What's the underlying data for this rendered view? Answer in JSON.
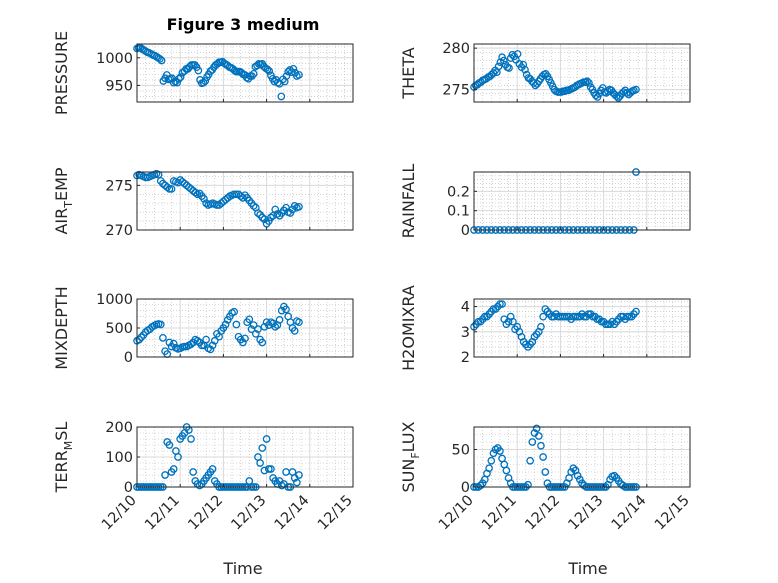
{
  "figure": {
    "title": "Figure 3 medium",
    "xlabel": "Time",
    "xticklabels": [
      "12/10",
      "12/11",
      "12/12",
      "12/13",
      "12/14",
      "12/15"
    ]
  },
  "chart_data": [
    {
      "type": "scatter",
      "ylabel": "PRESSURE",
      "xlim": [
        0,
        5
      ],
      "ylim": [
        920,
        1025
      ],
      "yticks": [
        950,
        1000
      ],
      "yticklabels": [
        "950",
        "1000"
      ],
      "x": [
        0.0,
        0.04,
        0.08,
        0.12,
        0.16,
        0.2,
        0.24,
        0.28,
        0.33,
        0.37,
        0.41,
        0.45,
        0.49,
        0.53,
        0.57,
        0.61,
        0.65,
        0.69,
        0.73,
        0.77,
        0.81,
        0.85,
        0.89,
        0.93,
        0.97,
        1.01,
        1.05,
        1.1,
        1.14,
        1.18,
        1.22,
        1.26,
        1.3,
        1.34,
        1.38,
        1.42,
        1.46,
        1.5,
        1.54,
        1.58,
        1.62,
        1.66,
        1.7,
        1.74,
        1.78,
        1.82,
        1.86,
        1.9,
        1.94,
        1.98,
        2.02,
        2.06,
        2.1,
        2.14,
        2.18,
        2.22,
        2.26,
        2.3,
        2.34,
        2.38,
        2.42,
        2.46,
        2.5,
        2.54,
        2.58,
        2.62,
        2.66,
        2.7,
        2.74,
        2.78,
        2.82,
        2.86,
        2.9,
        2.94,
        2.98,
        3.02,
        3.06,
        3.1,
        3.14,
        3.18,
        3.22,
        3.26,
        3.3,
        3.34,
        3.38,
        3.42,
        3.46,
        3.5,
        3.54,
        3.58,
        3.62,
        3.66,
        3.7,
        3.75
      ],
      "values": [
        1017,
        1018,
        1018,
        1016,
        1014,
        1012,
        1010,
        1009,
        1007,
        1005,
        1004,
        1002,
        1000,
        998,
        995,
        958,
        963,
        969,
        961,
        962,
        963,
        955,
        957,
        955,
        962,
        965,
        973,
        976,
        980,
        980,
        984,
        987,
        987,
        987,
        983,
        977,
        960,
        954,
        955,
        958,
        965,
        970,
        976,
        978,
        983,
        987,
        989,
        992,
        992,
        993,
        990,
        988,
        986,
        983,
        982,
        980,
        977,
        975,
        975,
        975,
        973,
        970,
        969,
        964,
        962,
        967,
        967,
        971,
        984,
        986,
        989,
        988,
        989,
        984,
        981,
        979,
        976,
        968,
        962,
        957,
        960,
        955,
        953,
        930,
        961,
        957,
        967,
        975,
        978,
        974,
        980,
        973,
        967,
        969
      ]
    },
    {
      "type": "scatter",
      "ylabel": "THETA",
      "xlim": [
        0,
        5
      ],
      "ylim": [
        273.5,
        280.5
      ],
      "yticks": [
        275,
        280
      ],
      "yticklabels": [
        "275",
        "280"
      ],
      "x": [
        0.0,
        0.04,
        0.08,
        0.12,
        0.16,
        0.2,
        0.24,
        0.28,
        0.33,
        0.37,
        0.41,
        0.45,
        0.49,
        0.53,
        0.57,
        0.61,
        0.65,
        0.69,
        0.73,
        0.77,
        0.81,
        0.85,
        0.89,
        0.93,
        0.97,
        1.01,
        1.05,
        1.1,
        1.14,
        1.18,
        1.22,
        1.26,
        1.3,
        1.34,
        1.38,
        1.42,
        1.46,
        1.5,
        1.54,
        1.58,
        1.62,
        1.66,
        1.7,
        1.74,
        1.78,
        1.82,
        1.86,
        1.9,
        1.94,
        1.98,
        2.02,
        2.06,
        2.1,
        2.14,
        2.18,
        2.22,
        2.26,
        2.3,
        2.34,
        2.38,
        2.42,
        2.46,
        2.5,
        2.54,
        2.58,
        2.62,
        2.66,
        2.7,
        2.74,
        2.78,
        2.82,
        2.86,
        2.9,
        2.94,
        2.98,
        3.02,
        3.06,
        3.1,
        3.14,
        3.18,
        3.22,
        3.26,
        3.3,
        3.34,
        3.38,
        3.42,
        3.46,
        3.5,
        3.54,
        3.58,
        3.62,
        3.66,
        3.7,
        3.75
      ],
      "values": [
        275.3,
        275.5,
        275.6,
        275.8,
        275.9,
        276.1,
        276.2,
        276.3,
        276.5,
        276.6,
        276.8,
        277.0,
        277.3,
        277.1,
        277.8,
        278.3,
        278.9,
        278.5,
        278.0,
        277.7,
        277.6,
        278.8,
        279.2,
        279.0,
        278.6,
        279.3,
        278.1,
        277.7,
        278.0,
        277.4,
        276.8,
        276.4,
        276.3,
        276.0,
        275.8,
        275.5,
        275.7,
        276.0,
        276.3,
        276.6,
        276.8,
        276.9,
        276.6,
        276.2,
        275.8,
        275.4,
        275.0,
        274.8,
        274.7,
        274.7,
        274.7,
        274.8,
        274.8,
        274.9,
        274.9,
        275.0,
        275.1,
        275.2,
        275.3,
        275.5,
        275.6,
        275.7,
        275.8,
        275.9,
        275.9,
        276.0,
        275.8,
        275.3,
        275.0,
        274.6,
        274.3,
        274.1,
        274.5,
        274.9,
        275.2,
        274.7,
        274.6,
        274.8,
        275.0,
        274.9,
        274.6,
        274.4,
        274.2,
        274.0,
        274.2,
        274.5,
        274.7,
        274.9,
        274.6,
        274.4,
        274.6,
        274.8,
        274.9,
        275.0
      ]
    },
    {
      "type": "scatter",
      "ylabel": "AIR_TEMP",
      "xlim": [
        0,
        5
      ],
      "ylim": [
        270,
        276.5
      ],
      "yticks": [
        270,
        275
      ],
      "yticklabels": [
        "270",
        "275"
      ],
      "x": [
        0.0,
        0.05,
        0.1,
        0.15,
        0.2,
        0.25,
        0.3,
        0.35,
        0.4,
        0.45,
        0.5,
        0.55,
        0.6,
        0.65,
        0.7,
        0.75,
        0.8,
        0.85,
        0.9,
        0.95,
        1.0,
        1.05,
        1.1,
        1.15,
        1.2,
        1.25,
        1.3,
        1.35,
        1.4,
        1.45,
        1.5,
        1.55,
        1.6,
        1.65,
        1.7,
        1.75,
        1.8,
        1.85,
        1.9,
        1.95,
        2.0,
        2.05,
        2.1,
        2.15,
        2.2,
        2.25,
        2.3,
        2.35,
        2.4,
        2.45,
        2.5,
        2.55,
        2.6,
        2.65,
        2.7,
        2.75,
        2.8,
        2.85,
        2.9,
        2.95,
        3.0,
        3.05,
        3.1,
        3.15,
        3.2,
        3.25,
        3.3,
        3.35,
        3.4,
        3.45,
        3.5,
        3.55,
        3.6,
        3.65,
        3.7,
        3.75
      ],
      "values": [
        276.1,
        276.2,
        276.1,
        276.0,
        275.9,
        275.9,
        276.0,
        276.1,
        276.2,
        276.3,
        276.2,
        275.5,
        275.2,
        275.0,
        274.8,
        274.6,
        274.6,
        275.5,
        275.4,
        275.3,
        275.6,
        275.4,
        275.2,
        275.0,
        274.8,
        274.6,
        274.4,
        274.2,
        274.0,
        274.1,
        273.8,
        273.5,
        273.0,
        272.8,
        272.9,
        273.0,
        272.9,
        272.8,
        272.8,
        273.0,
        273.2,
        273.4,
        273.6,
        273.8,
        273.9,
        274.0,
        274.0,
        274.0,
        273.8,
        273.6,
        273.9,
        273.6,
        273.3,
        273.0,
        272.7,
        272.5,
        271.9,
        271.7,
        271.4,
        271.2,
        270.7,
        271.0,
        271.4,
        271.6,
        272.3,
        271.8,
        271.6,
        271.9,
        272.2,
        272.5,
        272.0,
        271.9,
        272.3,
        272.7,
        272.5,
        272.6
      ]
    },
    {
      "type": "scatter",
      "ylabel": "RAINFALL",
      "xlim": [
        0,
        5
      ],
      "ylim": [
        0,
        0.3
      ],
      "yticks": [
        0,
        0.1,
        0.2
      ],
      "yticklabels": [
        "0",
        "0.1",
        "0.2"
      ],
      "x": [
        0.0,
        0.1,
        0.2,
        0.3,
        0.4,
        0.5,
        0.6,
        0.7,
        0.8,
        0.9,
        1.0,
        1.1,
        1.2,
        1.3,
        1.4,
        1.5,
        1.6,
        1.7,
        1.8,
        1.9,
        2.0,
        2.1,
        2.2,
        2.3,
        2.4,
        2.5,
        2.6,
        2.7,
        2.8,
        2.9,
        3.0,
        3.1,
        3.2,
        3.3,
        3.4,
        3.5,
        3.6,
        3.7,
        3.75
      ],
      "values": [
        0,
        0,
        0,
        0,
        0,
        0,
        0,
        0,
        0,
        0,
        0,
        0,
        0,
        0,
        0,
        0,
        0,
        0,
        0,
        0,
        0,
        0,
        0,
        0,
        0,
        0,
        0,
        0,
        0,
        0,
        0,
        0,
        0,
        0,
        0,
        0,
        0,
        0,
        0.3
      ]
    },
    {
      "type": "scatter",
      "ylabel": "MIXDEPTH",
      "xlim": [
        0,
        5
      ],
      "ylim": [
        0,
        1000
      ],
      "yticks": [
        0,
        500,
        1000
      ],
      "yticklabels": [
        "0",
        "500",
        "1000"
      ],
      "x": [
        0.0,
        0.05,
        0.1,
        0.15,
        0.2,
        0.25,
        0.3,
        0.35,
        0.4,
        0.45,
        0.5,
        0.55,
        0.6,
        0.65,
        0.7,
        0.75,
        0.8,
        0.85,
        0.9,
        0.95,
        1.0,
        1.05,
        1.1,
        1.15,
        1.2,
        1.25,
        1.3,
        1.35,
        1.4,
        1.45,
        1.5,
        1.55,
        1.6,
        1.65,
        1.7,
        1.75,
        1.8,
        1.85,
        1.9,
        1.95,
        2.0,
        2.05,
        2.1,
        2.15,
        2.2,
        2.25,
        2.3,
        2.35,
        2.4,
        2.45,
        2.5,
        2.55,
        2.6,
        2.65,
        2.7,
        2.75,
        2.8,
        2.85,
        2.9,
        2.95,
        3.0,
        3.05,
        3.1,
        3.15,
        3.2,
        3.25,
        3.3,
        3.35,
        3.4,
        3.45,
        3.5,
        3.55,
        3.6,
        3.65,
        3.7,
        3.75
      ],
      "values": [
        280,
        300,
        340,
        380,
        430,
        460,
        480,
        520,
        540,
        560,
        570,
        560,
        330,
        100,
        50,
        250,
        180,
        230,
        160,
        140,
        150,
        170,
        180,
        180,
        200,
        220,
        250,
        300,
        280,
        250,
        200,
        200,
        300,
        150,
        130,
        200,
        280,
        400,
        350,
        450,
        500,
        560,
        640,
        700,
        760,
        780,
        560,
        350,
        300,
        250,
        320,
        600,
        650,
        480,
        550,
        400,
        480,
        300,
        250,
        520,
        600,
        550,
        600,
        580,
        520,
        550,
        640,
        800,
        870,
        820,
        700,
        600,
        500,
        450,
        620,
        600
      ]
    },
    {
      "type": "scatter",
      "ylabel": "H2OMIXRA",
      "xlim": [
        0,
        5
      ],
      "ylim": [
        2,
        4.3
      ],
      "yticks": [
        2,
        3,
        4
      ],
      "yticklabels": [
        "2",
        "3",
        "4"
      ],
      "x": [
        0.0,
        0.05,
        0.1,
        0.15,
        0.2,
        0.25,
        0.3,
        0.35,
        0.4,
        0.45,
        0.5,
        0.55,
        0.6,
        0.65,
        0.7,
        0.75,
        0.8,
        0.85,
        0.9,
        0.95,
        1.0,
        1.05,
        1.1,
        1.15,
        1.2,
        1.25,
        1.3,
        1.35,
        1.4,
        1.45,
        1.5,
        1.55,
        1.6,
        1.65,
        1.7,
        1.75,
        1.8,
        1.85,
        1.9,
        1.95,
        2.0,
        2.05,
        2.1,
        2.15,
        2.2,
        2.25,
        2.3,
        2.35,
        2.4,
        2.45,
        2.5,
        2.55,
        2.6,
        2.65,
        2.7,
        2.75,
        2.8,
        2.85,
        2.9,
        2.95,
        3.0,
        3.05,
        3.1,
        3.15,
        3.2,
        3.25,
        3.3,
        3.35,
        3.4,
        3.45,
        3.5,
        3.55,
        3.6,
        3.65,
        3.7,
        3.75
      ],
      "values": [
        3.2,
        3.3,
        3.4,
        3.4,
        3.5,
        3.6,
        3.6,
        3.7,
        3.8,
        3.9,
        3.9,
        4.0,
        4.1,
        4.1,
        3.5,
        3.3,
        3.4,
        3.6,
        3.4,
        3.1,
        3.2,
        3.0,
        2.8,
        2.6,
        2.5,
        2.4,
        2.5,
        2.6,
        2.8,
        2.9,
        3.0,
        3.2,
        3.6,
        3.9,
        3.8,
        3.7,
        3.6,
        3.6,
        3.7,
        3.6,
        3.6,
        3.6,
        3.6,
        3.6,
        3.6,
        3.5,
        3.6,
        3.6,
        3.6,
        3.6,
        3.7,
        3.6,
        3.6,
        3.7,
        3.7,
        3.6,
        3.6,
        3.5,
        3.5,
        3.4,
        3.4,
        3.3,
        3.3,
        3.3,
        3.4,
        3.3,
        3.4,
        3.5,
        3.6,
        3.6,
        3.5,
        3.6,
        3.6,
        3.6,
        3.7,
        3.8
      ]
    },
    {
      "type": "scatter",
      "ylabel": "TERR_MSL",
      "xlim": [
        0,
        5
      ],
      "ylim": [
        0,
        200
      ],
      "yticks": [
        0,
        100,
        200
      ],
      "yticklabels": [
        "0",
        "100",
        "200"
      ],
      "x": [
        0.0,
        0.05,
        0.1,
        0.15,
        0.2,
        0.25,
        0.3,
        0.35,
        0.4,
        0.45,
        0.5,
        0.55,
        0.6,
        0.65,
        0.7,
        0.75,
        0.8,
        0.85,
        0.9,
        0.95,
        1.0,
        1.05,
        1.1,
        1.15,
        1.2,
        1.25,
        1.3,
        1.35,
        1.4,
        1.45,
        1.5,
        1.55,
        1.6,
        1.65,
        1.7,
        1.75,
        1.8,
        1.85,
        1.9,
        1.95,
        2.0,
        2.05,
        2.1,
        2.15,
        2.2,
        2.25,
        2.3,
        2.35,
        2.4,
        2.45,
        2.5,
        2.55,
        2.6,
        2.65,
        2.7,
        2.75,
        2.8,
        2.85,
        2.9,
        2.95,
        3.0,
        3.05,
        3.1,
        3.15,
        3.2,
        3.25,
        3.3,
        3.35,
        3.4,
        3.45,
        3.5,
        3.55,
        3.6,
        3.65,
        3.7,
        3.75
      ],
      "values": [
        0,
        0,
        0,
        0,
        0,
        0,
        0,
        0,
        0,
        0,
        0,
        0,
        0,
        40,
        150,
        140,
        50,
        60,
        120,
        100,
        160,
        170,
        180,
        200,
        190,
        160,
        50,
        20,
        10,
        5,
        10,
        20,
        30,
        40,
        50,
        60,
        20,
        10,
        0,
        0,
        0,
        0,
        0,
        0,
        0,
        0,
        0,
        0,
        0,
        0,
        0,
        0,
        20,
        0,
        0,
        0,
        100,
        80,
        130,
        55,
        160,
        60,
        60,
        30,
        20,
        10,
        20,
        5,
        10,
        50,
        0,
        0,
        50,
        30,
        15,
        40
      ]
    },
    {
      "type": "scatter",
      "ylabel": "SUN_FLUX",
      "xlim": [
        0,
        5
      ],
      "ylim": [
        0,
        80
      ],
      "yticks": [
        0,
        50
      ],
      "yticklabels": [
        "0",
        "50"
      ],
      "x": [
        0.0,
        0.05,
        0.1,
        0.15,
        0.2,
        0.25,
        0.3,
        0.35,
        0.4,
        0.45,
        0.5,
        0.55,
        0.6,
        0.65,
        0.7,
        0.75,
        0.8,
        0.85,
        0.9,
        0.95,
        1.0,
        1.05,
        1.1,
        1.15,
        1.2,
        1.25,
        1.3,
        1.35,
        1.4,
        1.45,
        1.5,
        1.55,
        1.6,
        1.65,
        1.7,
        1.75,
        1.8,
        1.85,
        1.9,
        1.95,
        2.0,
        2.05,
        2.1,
        2.15,
        2.2,
        2.25,
        2.3,
        2.35,
        2.4,
        2.45,
        2.5,
        2.55,
        2.6,
        2.65,
        2.7,
        2.75,
        2.8,
        2.85,
        2.9,
        2.95,
        3.0,
        3.05,
        3.1,
        3.15,
        3.2,
        3.25,
        3.3,
        3.35,
        3.4,
        3.45,
        3.5,
        3.55,
        3.6,
        3.65,
        3.7,
        3.75
      ],
      "values": [
        0,
        0,
        0,
        2,
        5,
        10,
        18,
        25,
        35,
        45,
        50,
        52,
        48,
        38,
        30,
        22,
        12,
        5,
        0,
        0,
        0,
        0,
        0,
        0,
        0,
        3,
        35,
        60,
        72,
        78,
        68,
        55,
        40,
        20,
        5,
        0,
        0,
        0,
        0,
        0,
        0,
        0,
        0,
        5,
        12,
        20,
        25,
        22,
        15,
        10,
        5,
        2,
        0,
        0,
        0,
        0,
        0,
        0,
        0,
        0,
        0,
        0,
        3,
        10,
        14,
        15,
        12,
        8,
        4,
        2,
        0,
        0,
        0,
        0,
        0,
        0
      ]
    }
  ]
}
